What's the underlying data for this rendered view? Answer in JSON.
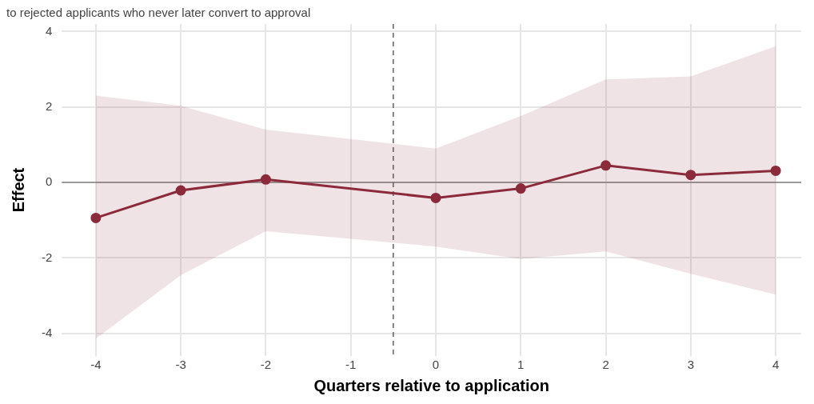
{
  "chart_data": {
    "type": "line",
    "subtitle": "to rejected applicants who never later convert to approval",
    "xlabel": "Quarters relative to application",
    "ylabel": "Effect",
    "x": [
      -4,
      -3,
      -2,
      0,
      1,
      2,
      3,
      4
    ],
    "series": [
      {
        "color": "#8b2a3a",
        "values": [
          -0.94,
          -0.21,
          0.08,
          -0.41,
          -0.16,
          0.45,
          0.2,
          0.31
        ],
        "lower": [
          -4.14,
          -2.46,
          -1.29,
          -1.7,
          -2.03,
          -1.83,
          -2.42,
          -2.97
        ],
        "upper": [
          2.3,
          2.03,
          1.4,
          0.9,
          1.76,
          2.73,
          2.81,
          3.61
        ]
      }
    ],
    "xlim": [
      -4.4,
      4.3
    ],
    "xticks": [
      -4,
      -3,
      -2,
      -1,
      0,
      1,
      2,
      3,
      4
    ],
    "ylim": [
      -4.6,
      4.2
    ],
    "yticks": [
      -4,
      -2,
      0,
      2,
      4
    ],
    "ref_lines": [
      {
        "axis": "y",
        "value": 0,
        "color": "#808080"
      },
      {
        "axis": "x",
        "value": -0.5,
        "color": "#606060",
        "line_style": "dashed"
      }
    ],
    "grid": true,
    "legend": false,
    "marker": "circle",
    "line_style": "solid"
  }
}
